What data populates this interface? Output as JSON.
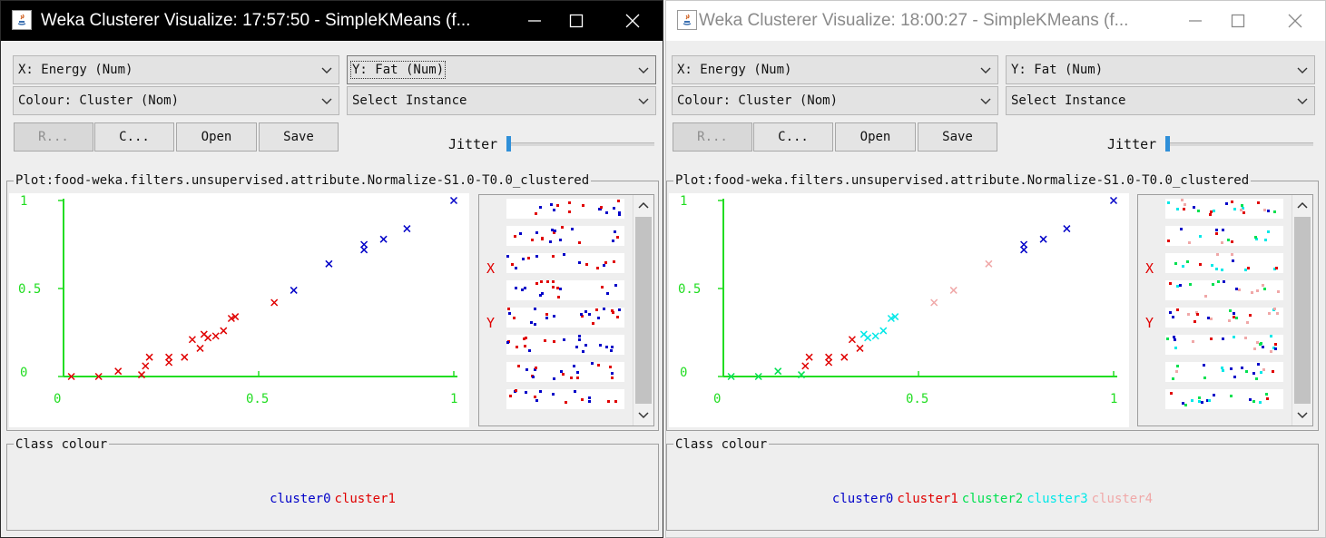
{
  "windows": [
    {
      "title": "Weka Clusterer Visualize: 17:57:50 - SimpleKMeans (f...",
      "x_combo": "X: Energy (Num)",
      "y_combo": "Y: Fat (Num)",
      "colour_combo": "Colour: Cluster (Nom)",
      "instance_combo": "Select Instance",
      "buttons": {
        "reset": "R...",
        "clear": "C...",
        "open": "Open",
        "save": "Save"
      },
      "jitter_label": "Jitter",
      "jitter_value": 0,
      "plot_title": "Plot:food-weka.filters.unsupervised.attribute.Normalize-S1.0-T0.0_clustered",
      "axis": {
        "x_ticks": [
          "0",
          "0.5",
          "1"
        ],
        "y_ticks": [
          "1",
          "0.5",
          "0"
        ]
      },
      "attr_panel": {
        "x_label": "X",
        "y_label": "Y"
      },
      "class_colour_title": "Class colour",
      "clusters": [
        {
          "name": "cluster0",
          "color": "#0000c8"
        },
        {
          "name": "cluster1",
          "color": "#e00000"
        }
      ],
      "chart_data": {
        "type": "scatter",
        "xlim": [
          0,
          1
        ],
        "ylim": [
          0,
          1
        ],
        "series": [
          {
            "name": "cluster0",
            "color": "#0000c8",
            "x": [
              1.0,
              0.82,
              0.77,
              0.77,
              0.68,
              0.59,
              0.88
            ],
            "y": [
              1.0,
              0.78,
              0.75,
              0.72,
              0.64,
              0.49,
              0.84
            ]
          },
          {
            "name": "cluster1",
            "color": "#e00000",
            "x": [
              0.54,
              0.44,
              0.43,
              0.41,
              0.39,
              0.37,
              0.36,
              0.35,
              0.33,
              0.31,
              0.27,
              0.27,
              0.22,
              0.21,
              0.2,
              0.14,
              0.09,
              0.02
            ],
            "y": [
              0.42,
              0.34,
              0.33,
              0.26,
              0.23,
              0.22,
              0.24,
              0.16,
              0.21,
              0.11,
              0.08,
              0.11,
              0.11,
              0.06,
              0.01,
              0.03,
              0.0,
              0.0
            ]
          }
        ]
      }
    },
    {
      "title": "Weka Clusterer Visualize: 18:00:27 - SimpleKMeans (f...",
      "x_combo": "X: Energy (Num)",
      "y_combo": "Y: Fat (Num)",
      "colour_combo": "Colour: Cluster (Nom)",
      "instance_combo": "Select Instance",
      "buttons": {
        "reset": "R...",
        "clear": "C...",
        "open": "Open",
        "save": "Save"
      },
      "jitter_label": "Jitter",
      "jitter_value": 0,
      "plot_title": "Plot:food-weka.filters.unsupervised.attribute.Normalize-S1.0-T0.0_clustered",
      "axis": {
        "x_ticks": [
          "0",
          "0.5",
          "1"
        ],
        "y_ticks": [
          "1",
          "0.5",
          "0"
        ]
      },
      "attr_panel": {
        "x_label": "X",
        "y_label": "Y"
      },
      "class_colour_title": "Class colour",
      "clusters": [
        {
          "name": "cluster0",
          "color": "#0000c8"
        },
        {
          "name": "cluster1",
          "color": "#e00000"
        },
        {
          "name": "cluster2",
          "color": "#00e050"
        },
        {
          "name": "cluster3",
          "color": "#00e8e8"
        },
        {
          "name": "cluster4",
          "color": "#f0a8a8"
        }
      ],
      "chart_data": {
        "type": "scatter",
        "xlim": [
          0,
          1
        ],
        "ylim": [
          0,
          1
        ],
        "series": [
          {
            "name": "cluster0",
            "color": "#0000c8",
            "x": [
              1.0,
              0.88,
              0.82,
              0.77,
              0.77
            ],
            "y": [
              1.0,
              0.84,
              0.78,
              0.75,
              0.72
            ]
          },
          {
            "name": "cluster1",
            "color": "#e00000",
            "x": [
              0.35,
              0.33,
              0.31,
              0.27,
              0.27,
              0.22,
              0.21
            ],
            "y": [
              0.16,
              0.21,
              0.11,
              0.08,
              0.11,
              0.11,
              0.06
            ]
          },
          {
            "name": "cluster2",
            "color": "#00e050",
            "x": [
              0.2,
              0.14,
              0.09,
              0.02
            ],
            "y": [
              0.01,
              0.03,
              0.0,
              0.0
            ]
          },
          {
            "name": "cluster3",
            "color": "#00e8e8",
            "x": [
              0.44,
              0.43,
              0.41,
              0.39,
              0.37,
              0.36
            ],
            "y": [
              0.34,
              0.33,
              0.26,
              0.23,
              0.22,
              0.24
            ]
          },
          {
            "name": "cluster4",
            "color": "#f0a8a8",
            "x": [
              0.68,
              0.59,
              0.54
            ],
            "y": [
              0.64,
              0.49,
              0.42
            ]
          }
        ]
      }
    }
  ]
}
